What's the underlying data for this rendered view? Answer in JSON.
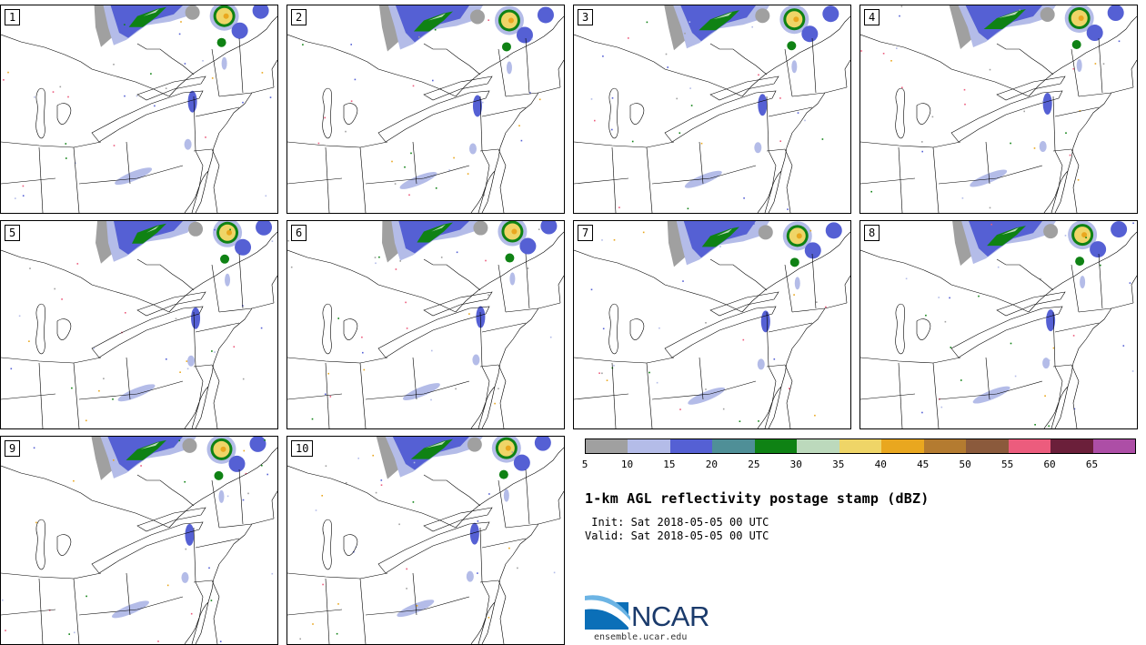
{
  "panels": [
    {
      "label": "1"
    },
    {
      "label": "2"
    },
    {
      "label": "3"
    },
    {
      "label": "4"
    },
    {
      "label": "5"
    },
    {
      "label": "6"
    },
    {
      "label": "7"
    },
    {
      "label": "8"
    },
    {
      "label": "9"
    },
    {
      "label": "10"
    }
  ],
  "colorbar": {
    "colors": [
      "#a0a0a0",
      "#b4bce8",
      "#5560d4",
      "#4f8f97",
      "#0f8214",
      "#bcd9bc",
      "#efd567",
      "#e9a71f",
      "#b47b30",
      "#8b5a3c",
      "#ec5c7d",
      "#6b1f3a",
      "#ad4ea6"
    ],
    "ticks": [
      "5",
      "10",
      "15",
      "20",
      "25",
      "30",
      "35",
      "40",
      "45",
      "50",
      "55",
      "60",
      "65"
    ]
  },
  "title": "1-km AGL reflectivity postage stamp (dBZ)",
  "init": {
    "label": " Init:",
    "value": "Sat 2018-05-05 00 UTC"
  },
  "valid": {
    "label": "Valid:",
    "value": "Sat 2018-05-05 00 UTC"
  },
  "logo": {
    "text": "NCAR",
    "site": "ensemble.ucar.edu"
  }
}
